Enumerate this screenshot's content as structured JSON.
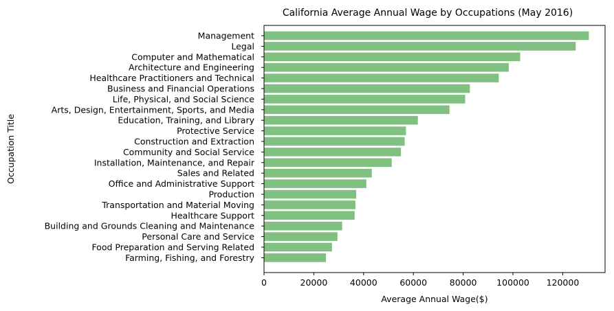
{
  "chart_data": {
    "type": "bar",
    "orientation": "horizontal",
    "title": "California Average Annual Wage by Occupations (May 2016)",
    "xlabel": "Average Annual Wage($)",
    "ylabel": "Occupation Title",
    "xlim": [
      0,
      137000
    ],
    "xticks": [
      0,
      20000,
      40000,
      60000,
      80000,
      100000,
      120000
    ],
    "bar_color": "#80c080",
    "grid": false,
    "categories": [
      "Management",
      "Legal",
      "Computer and Mathematical",
      "Architecture and Engineering",
      "Healthcare Practitioners and Technical",
      "Business and Financial Operations",
      "Life, Physical, and Social Science",
      "Arts, Design, Entertainment, Sports, and Media",
      "Education, Training, and Library",
      "Protective Service",
      "Construction and Extraction",
      "Community and Social Service",
      "Installation, Maintenance, and Repair",
      "Sales and Related",
      "Office and Administrative Support",
      "Production",
      "Transportation and Material Moving",
      "Healthcare Support",
      "Building and Grounds Cleaning and Maintenance",
      "Personal Care and Service",
      "Food Preparation and Serving Related",
      "Farming, Fishing, and Forestry"
    ],
    "values": [
      130500,
      125200,
      102900,
      98300,
      94300,
      82700,
      80800,
      74500,
      61800,
      57000,
      56500,
      55000,
      51300,
      43300,
      41100,
      37000,
      36700,
      36400,
      31400,
      29500,
      27300,
      24900
    ]
  }
}
